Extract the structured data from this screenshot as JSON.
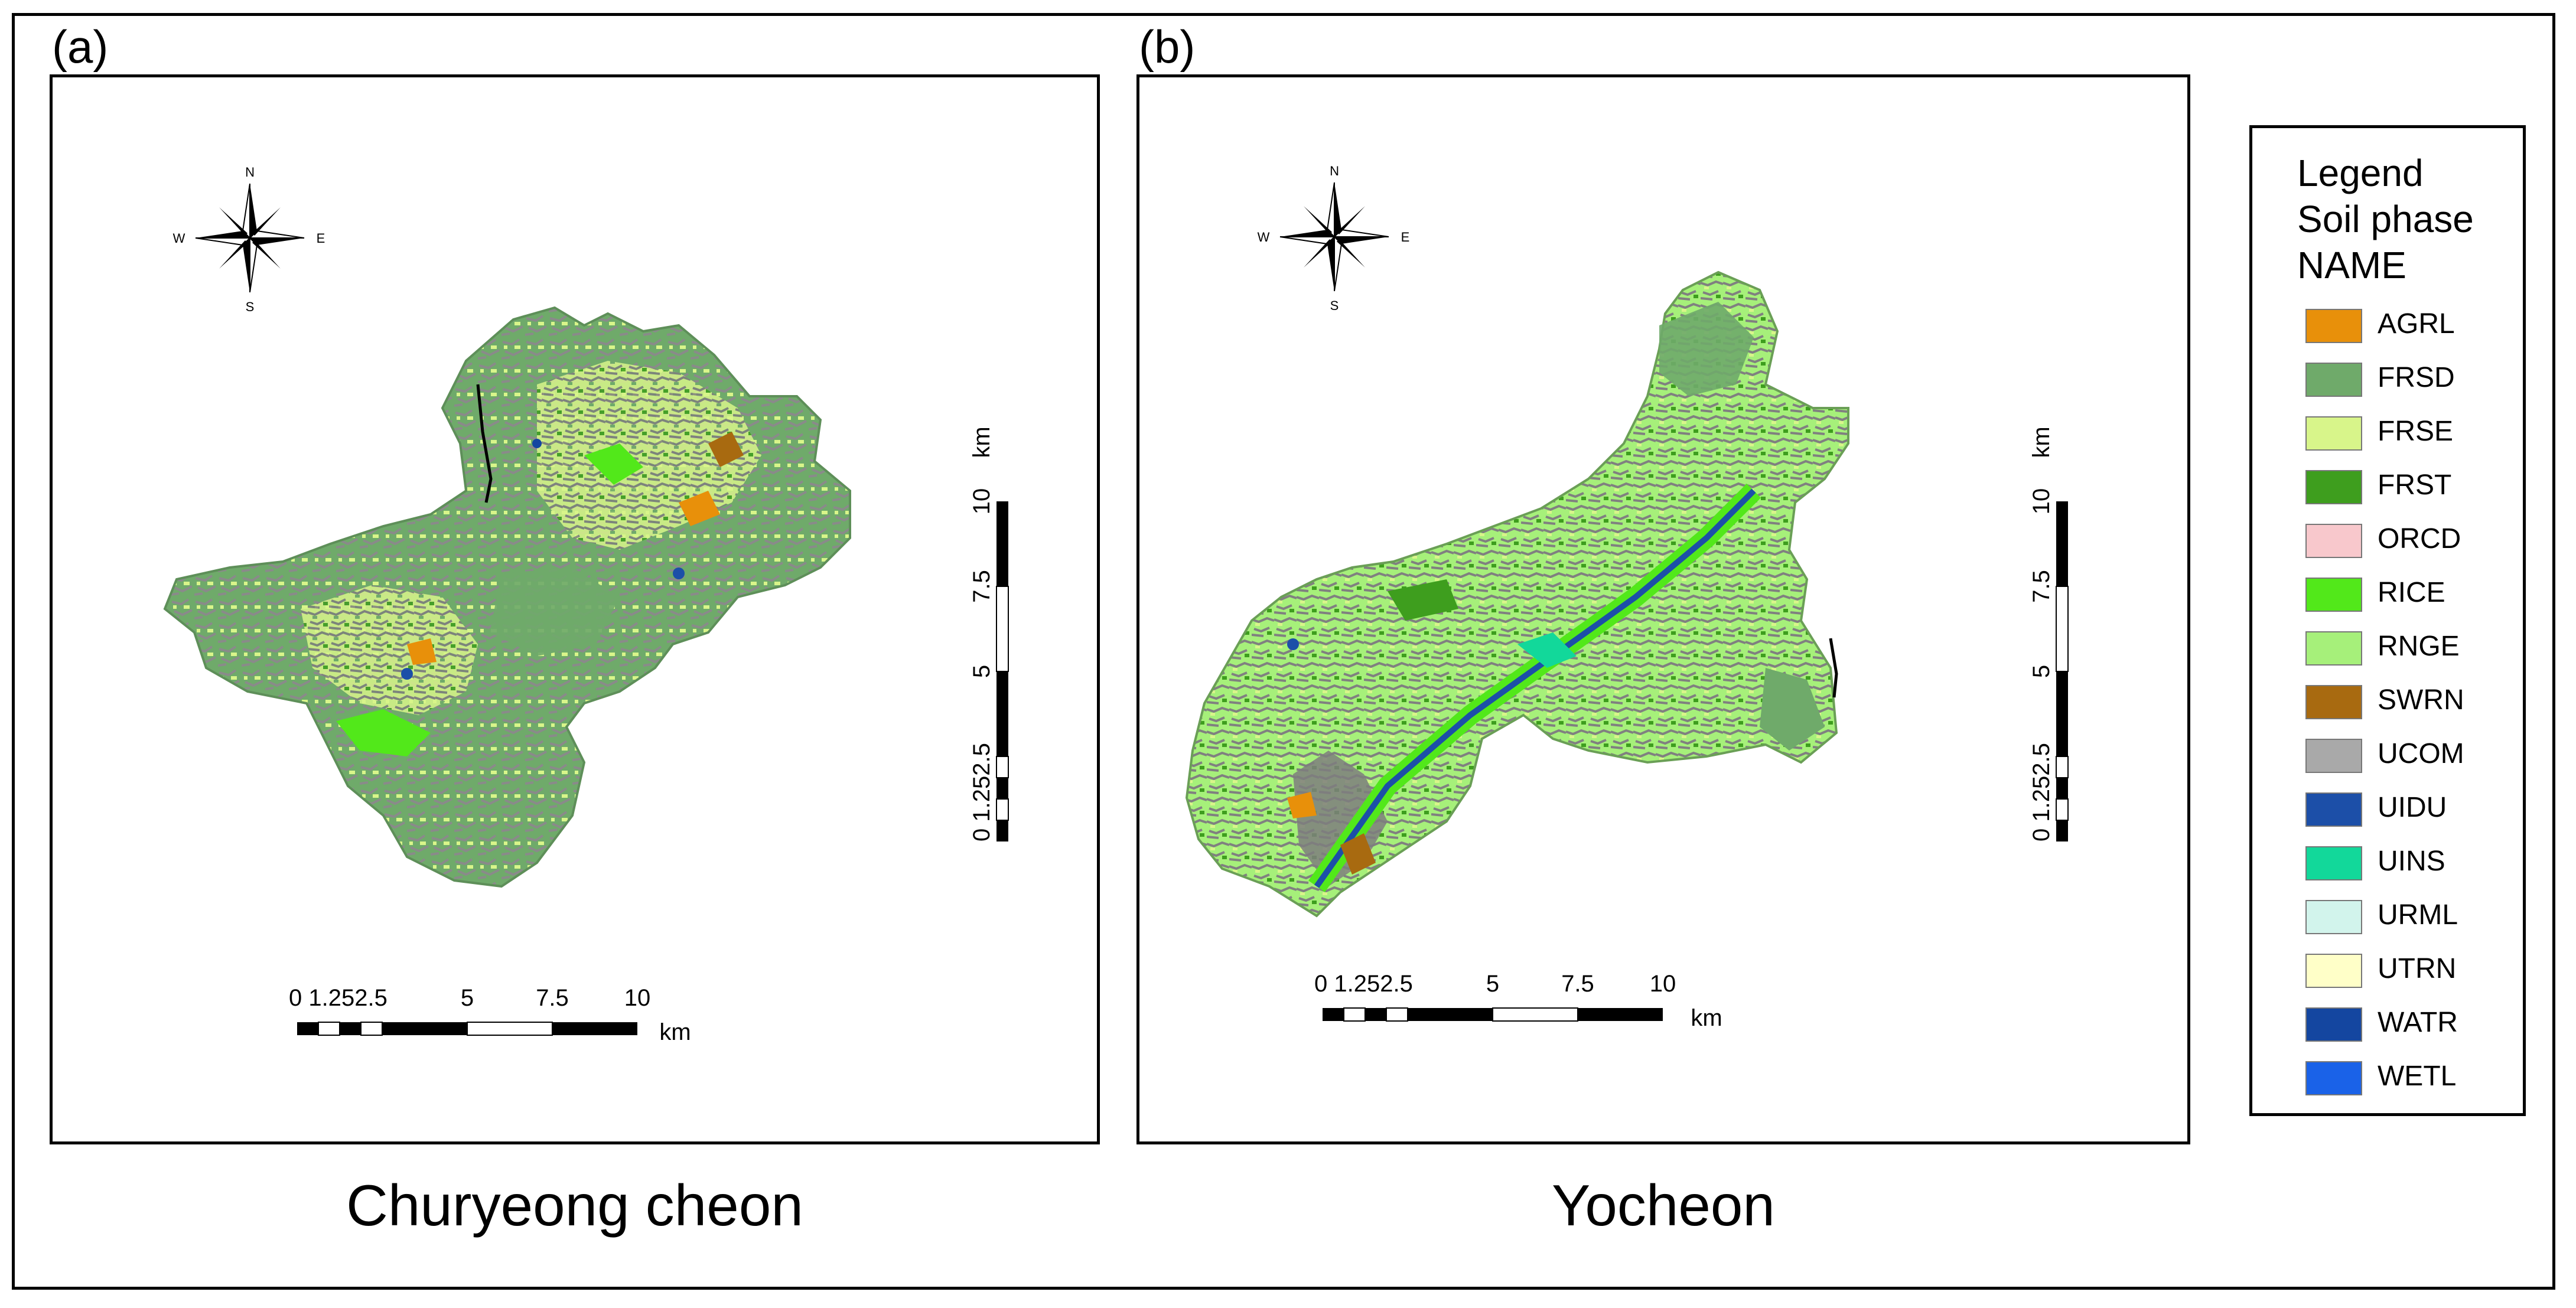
{
  "panels": [
    {
      "label": "(a)",
      "caption": "Churyeong cheon"
    },
    {
      "label": "(b)",
      "caption": "Yocheon"
    }
  ],
  "compass": {
    "north": "N",
    "south": "S",
    "east": "E",
    "west": "W"
  },
  "scale_bar": {
    "ticks": [
      "0",
      "1.25",
      "2.5",
      "5",
      "7.5",
      "10"
    ],
    "horizontal_ticks_text": [
      "0 1.252.5",
      "5",
      "7.5",
      "10"
    ],
    "unit": "km"
  },
  "legend": {
    "title_lines": [
      "Legend",
      "Soil phase",
      "NAME"
    ],
    "items": [
      {
        "name": "AGRL",
        "color": "#E8900A"
      },
      {
        "name": "FRSD",
        "color": "#6FAA6A"
      },
      {
        "name": "FRSE",
        "color": "#D8F58A"
      },
      {
        "name": "FRST",
        "color": "#3E9E1E"
      },
      {
        "name": "ORCD",
        "color": "#F8C8CC"
      },
      {
        "name": "RICE",
        "color": "#52E81A"
      },
      {
        "name": "RNGE",
        "color": "#A6F07A"
      },
      {
        "name": "SWRN",
        "color": "#A86A10"
      },
      {
        "name": "UCOM",
        "color": "#A9A9A9"
      },
      {
        "name": "UIDU",
        "color": "#1C4FA8"
      },
      {
        "name": "UINS",
        "color": "#12D89A"
      },
      {
        "name": "URML",
        "color": "#D2F4EC"
      },
      {
        "name": "UTRN",
        "color": "#FFFFC8"
      },
      {
        "name": "WATR",
        "color": "#1446A0"
      },
      {
        "name": "WETL",
        "color": "#1A62E8"
      }
    ]
  }
}
